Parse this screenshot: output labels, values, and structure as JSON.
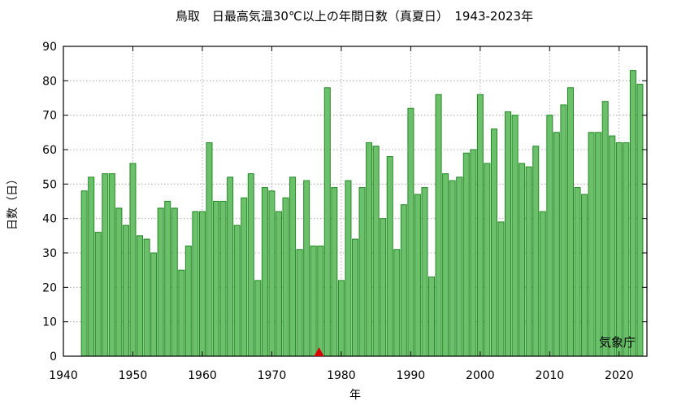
{
  "chart_data": {
    "type": "bar",
    "title": "鳥取　日最高気温30℃以上の年間日数（真夏日）　1943-2023年",
    "xlabel": "年",
    "ylabel": "日数（日）",
    "source": "気象庁",
    "xlim": [
      1940,
      2024
    ],
    "ylim": [
      0,
      90
    ],
    "x_ticks": [
      1940,
      1950,
      1960,
      1970,
      1980,
      1990,
      2000,
      2010,
      2020
    ],
    "y_ticks": [
      0,
      10,
      20,
      30,
      40,
      50,
      60,
      70,
      80,
      90
    ],
    "grid": true,
    "bar_color": "#6cc06c",
    "bar_edge_color": "#1f8a1f",
    "marker": {
      "x": 1976.8,
      "y": 0,
      "shape": "triangle",
      "color": "#dd0000"
    },
    "x": [
      1943,
      1944,
      1945,
      1946,
      1947,
      1948,
      1949,
      1950,
      1951,
      1952,
      1953,
      1954,
      1955,
      1956,
      1957,
      1958,
      1959,
      1960,
      1961,
      1962,
      1963,
      1964,
      1965,
      1966,
      1967,
      1968,
      1969,
      1970,
      1971,
      1972,
      1973,
      1974,
      1975,
      1976,
      1977,
      1978,
      1979,
      1980,
      1981,
      1982,
      1983,
      1984,
      1985,
      1986,
      1987,
      1988,
      1989,
      1990,
      1991,
      1992,
      1993,
      1994,
      1995,
      1996,
      1997,
      1998,
      1999,
      2000,
      2001,
      2002,
      2003,
      2004,
      2005,
      2006,
      2007,
      2008,
      2009,
      2010,
      2011,
      2012,
      2013,
      2014,
      2015,
      2016,
      2017,
      2018,
      2019,
      2020,
      2021,
      2022,
      2023
    ],
    "values": [
      48,
      52,
      36,
      53,
      53,
      43,
      38,
      56,
      35,
      34,
      30,
      43,
      45,
      43,
      25,
      32,
      42,
      42,
      62,
      45,
      45,
      52,
      38,
      46,
      53,
      22,
      49,
      48,
      42,
      46,
      52,
      31,
      51,
      32,
      32,
      78,
      49,
      22,
      51,
      34,
      49,
      62,
      61,
      40,
      58,
      31,
      44,
      72,
      47,
      49,
      23,
      76,
      53,
      51,
      52,
      59,
      60,
      76,
      56,
      66,
      39,
      71,
      70,
      56,
      55,
      61,
      42,
      70,
      65,
      73,
      78,
      49,
      47,
      65,
      65,
      74,
      64,
      62,
      62,
      83,
      79
    ]
  }
}
